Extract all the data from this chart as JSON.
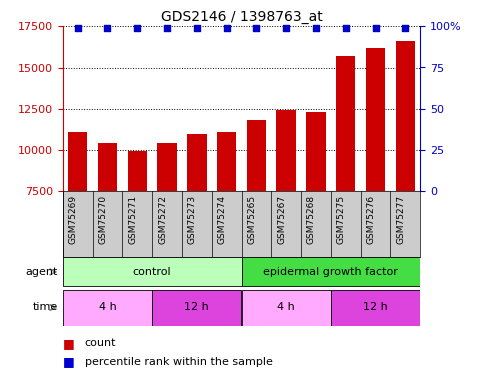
{
  "title": "GDS2146 / 1398763_at",
  "samples": [
    "GSM75269",
    "GSM75270",
    "GSM75271",
    "GSM75272",
    "GSM75273",
    "GSM75274",
    "GSM75265",
    "GSM75267",
    "GSM75268",
    "GSM75275",
    "GSM75276",
    "GSM75277"
  ],
  "bar_values": [
    11100,
    10400,
    9950,
    10450,
    11000,
    11100,
    11800,
    12400,
    12300,
    15700,
    16200,
    16600
  ],
  "percentile_values": [
    99,
    99,
    99,
    99,
    99,
    99,
    99,
    99,
    99,
    99,
    99,
    99
  ],
  "bar_color": "#cc0000",
  "dot_color": "#0000cc",
  "ylim_left": [
    7500,
    17500
  ],
  "ylim_right": [
    0,
    100
  ],
  "yticks_left": [
    7500,
    10000,
    12500,
    15000,
    17500
  ],
  "yticks_right": [
    0,
    25,
    50,
    75,
    100
  ],
  "agent_groups": [
    {
      "label": "control",
      "start": 0,
      "end": 6,
      "color": "#bbffbb"
    },
    {
      "label": "epidermal growth factor",
      "start": 6,
      "end": 12,
      "color": "#44dd44"
    }
  ],
  "time_groups": [
    {
      "label": "4 h",
      "start": 0,
      "end": 3,
      "color": "#ffaaff"
    },
    {
      "label": "12 h",
      "start": 3,
      "end": 6,
      "color": "#dd44dd"
    },
    {
      "label": "4 h",
      "start": 6,
      "end": 9,
      "color": "#ffaaff"
    },
    {
      "label": "12 h",
      "start": 9,
      "end": 12,
      "color": "#dd44dd"
    }
  ],
  "sample_bg_color": "#cccccc",
  "legend_count_color": "#cc0000",
  "legend_dot_color": "#0000cc",
  "left_axis_color": "#cc0000",
  "right_axis_color": "#0000cc",
  "fig_width": 4.83,
  "fig_height": 3.75,
  "dpi": 100
}
